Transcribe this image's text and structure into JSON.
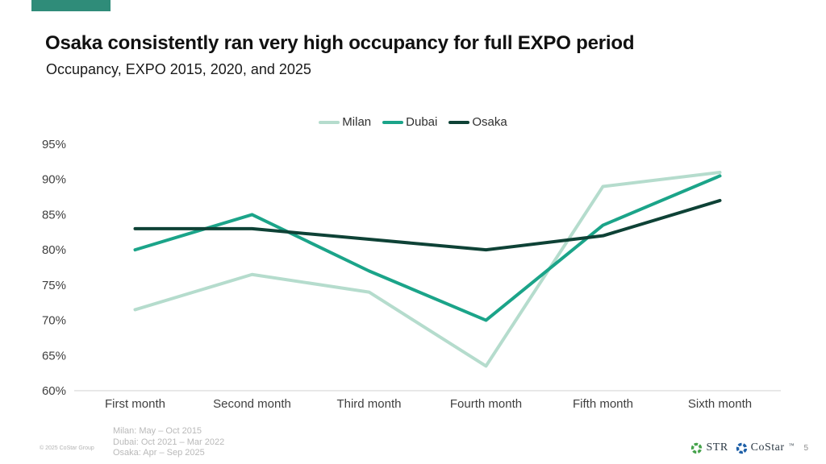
{
  "slide": {
    "title": "Osaka consistently ran very high occupancy for full EXPO period",
    "subtitle": "Occupancy, EXPO 2015, 2020, and 2025",
    "accent_color": "#2f8c79"
  },
  "chart_data": {
    "type": "line",
    "title": "",
    "xlabel": "",
    "ylabel": "",
    "categories": [
      "First month",
      "Second month",
      "Third month",
      "Fourth month",
      "Fifth month",
      "Sixth month"
    ],
    "series": [
      {
        "name": "Milan",
        "color": "#b5dccd",
        "values": [
          71.5,
          76.5,
          74,
          63.5,
          89,
          91
        ]
      },
      {
        "name": "Dubai",
        "color": "#1ba489",
        "values": [
          80,
          85,
          77,
          70,
          83.5,
          90.5
        ]
      },
      {
        "name": "Osaka",
        "color": "#0e4236",
        "values": [
          83,
          83,
          81.5,
          80,
          82,
          87
        ]
      }
    ],
    "ylim": [
      60,
      95
    ],
    "ytick_step": 5,
    "ytick_format": "percent",
    "grid": false,
    "legend_position": "top-center",
    "axis_color": "#e0e0e0",
    "tick_label_color": "#3f3f3f"
  },
  "footnotes": [
    "Milan: May – Oct 2015",
    "Dubai: Oct 2021 – Mar 2022",
    "Osaka: Apr – Sep 2025"
  ],
  "footer": {
    "copyright": "© 2025 CoStar Group",
    "page_number": "5",
    "logos": [
      {
        "name": "STR",
        "mark": "",
        "icon_color": "#45a24b",
        "text_color": "#2e3b46"
      },
      {
        "name": "CoStar",
        "mark": "™",
        "icon_color": "#1d5fa7",
        "text_color": "#2e3b46"
      }
    ]
  }
}
